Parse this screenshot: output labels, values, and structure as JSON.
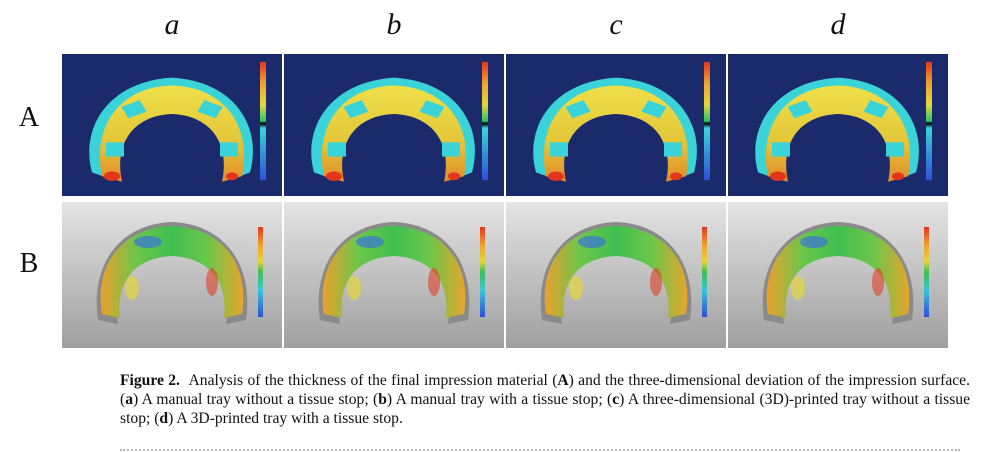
{
  "column_labels": [
    "a",
    "b",
    "c",
    "d"
  ],
  "row_labels": [
    "A",
    "B"
  ],
  "caption": {
    "label": "Figure 2.",
    "lead": "Analysis of the thickness of the final impression material (",
    "A": "A",
    "mid1": ") and the three-dimensional deviation of the impression surface. (",
    "a_key": "a",
    "a_text": ") A manual tray without a tissue stop; (",
    "b_key": "b",
    "b_text": ") A manual tray with a tissue stop; (",
    "c_key": "c",
    "c_text": ") A three-dimensional (3D)-printed tray without a tissue stop; (",
    "d_key": "d",
    "d_text": ") A 3D-printed tray with a tissue stop."
  },
  "colors": {
    "panel_bg_top": "#1a2a6a",
    "panel_bg_bottom_light": "#e2e2e2",
    "panel_bg_bottom_dark": "#a9a9a9",
    "cyan": "#39d3d8",
    "yellow": "#e6d63a",
    "orange": "#f0a12d",
    "red": "#e2351e",
    "green": "#3fbf50",
    "blue": "#3b74d8"
  }
}
